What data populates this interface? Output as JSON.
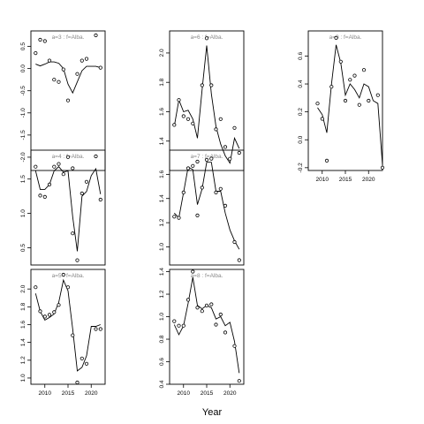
{
  "chart_data": {
    "type": "scatter",
    "xlabel": "Year",
    "panels": [
      {
        "label": "a=3  :  f=Alba.",
        "xlim": [
          2007,
          2023
        ],
        "ylim": [
          -2.3,
          0.85
        ],
        "yticks": [
          -2.0,
          -1.5,
          -1.0,
          -0.5,
          0.0,
          0.5
        ],
        "points": [
          [
            2008,
            0.35
          ],
          [
            2009,
            0.65
          ],
          [
            2010,
            0.62
          ],
          [
            2011,
            0.18
          ],
          [
            2012,
            -0.25
          ],
          [
            2013,
            -0.3
          ],
          [
            2014,
            -0.02
          ],
          [
            2015,
            -0.72
          ],
          [
            2016,
            -2.25
          ],
          [
            2017,
            -0.12
          ],
          [
            2018,
            0.18
          ],
          [
            2019,
            0.22
          ],
          [
            2021,
            0.75
          ],
          [
            2022,
            0.02
          ]
        ],
        "fit": [
          [
            2008,
            0.1
          ],
          [
            2009,
            0.06
          ],
          [
            2010,
            0.1
          ],
          [
            2011,
            0.15
          ],
          [
            2012,
            0.15
          ],
          [
            2013,
            0.12
          ],
          [
            2014,
            0.0
          ],
          [
            2015,
            -0.35
          ],
          [
            2016,
            -0.55
          ],
          [
            2017,
            -0.3
          ],
          [
            2018,
            -0.05
          ],
          [
            2019,
            0.05
          ],
          [
            2020,
            0.05
          ],
          [
            2021,
            0.05
          ],
          [
            2022,
            0.02
          ]
        ]
      },
      {
        "label": "a=6  :  f=Alba.",
        "xlim": [
          2007,
          2023
        ],
        "ylim": [
          1.2,
          2.15
        ],
        "yticks": [
          1.4,
          1.6,
          1.8,
          2.0
        ],
        "points": [
          [
            2008,
            1.51
          ],
          [
            2009,
            1.68
          ],
          [
            2010,
            1.57
          ],
          [
            2011,
            1.55
          ],
          [
            2012,
            1.52
          ],
          [
            2013,
            1.26
          ],
          [
            2014,
            1.78
          ],
          [
            2015,
            2.1
          ],
          [
            2016,
            1.78
          ],
          [
            2017,
            1.48
          ],
          [
            2018,
            1.55
          ],
          [
            2019,
            1.36
          ],
          [
            2020,
            1.28
          ],
          [
            2021,
            1.49
          ],
          [
            2022,
            1.32
          ]
        ],
        "fit": [
          [
            2008,
            1.5
          ],
          [
            2009,
            1.68
          ],
          [
            2010,
            1.6
          ],
          [
            2011,
            1.61
          ],
          [
            2012,
            1.55
          ],
          [
            2013,
            1.42
          ],
          [
            2014,
            1.75
          ],
          [
            2015,
            2.05
          ],
          [
            2016,
            1.72
          ],
          [
            2017,
            1.5
          ],
          [
            2018,
            1.38
          ],
          [
            2019,
            1.3
          ],
          [
            2020,
            1.25
          ],
          [
            2021,
            1.42
          ],
          [
            2022,
            1.35
          ]
        ]
      },
      {
        "label": "a=9  :  f=Alba.",
        "xlim": [
          2007,
          2023
        ],
        "ylim": [
          -0.22,
          0.78
        ],
        "yticks": [
          -0.2,
          0.0,
          0.2,
          0.4,
          0.6
        ],
        "points": [
          [
            2009,
            0.26
          ],
          [
            2010,
            0.15
          ],
          [
            2011,
            -0.15
          ],
          [
            2012,
            0.38
          ],
          [
            2013,
            0.73
          ],
          [
            2014,
            0.56
          ],
          [
            2015,
            0.28
          ],
          [
            2016,
            0.43
          ],
          [
            2017,
            0.46
          ],
          [
            2018,
            0.25
          ],
          [
            2019,
            0.5
          ],
          [
            2020,
            0.28
          ],
          [
            2022,
            0.32
          ],
          [
            2023,
            -0.2
          ]
        ],
        "fit": [
          [
            2009,
            0.23
          ],
          [
            2010,
            0.18
          ],
          [
            2011,
            0.05
          ],
          [
            2012,
            0.4
          ],
          [
            2013,
            0.68
          ],
          [
            2014,
            0.55
          ],
          [
            2015,
            0.32
          ],
          [
            2016,
            0.4
          ],
          [
            2017,
            0.36
          ],
          [
            2018,
            0.3
          ],
          [
            2019,
            0.4
          ],
          [
            2020,
            0.38
          ],
          [
            2021,
            0.28
          ],
          [
            2022,
            0.26
          ],
          [
            2023,
            -0.18
          ]
        ]
      },
      {
        "label": "a=4  :  f=Alba.",
        "xlim": [
          2007,
          2023
        ],
        "ylim": [
          0.25,
          1.92
        ],
        "yticks": [
          0.5,
          1.0,
          1.5
        ],
        "points": [
          [
            2008,
            1.68
          ],
          [
            2009,
            1.26
          ],
          [
            2010,
            1.24
          ],
          [
            2011,
            1.42
          ],
          [
            2012,
            1.68
          ],
          [
            2013,
            1.72
          ],
          [
            2014,
            1.57
          ],
          [
            2015,
            1.82
          ],
          [
            2016,
            0.71
          ],
          [
            2017,
            0.32
          ],
          [
            2018,
            1.29
          ],
          [
            2019,
            1.46
          ],
          [
            2021,
            1.83
          ],
          [
            2022,
            1.2
          ]
        ],
        "fit": [
          [
            2008,
            1.62
          ],
          [
            2009,
            1.35
          ],
          [
            2010,
            1.35
          ],
          [
            2011,
            1.42
          ],
          [
            2012,
            1.62
          ],
          [
            2013,
            1.68
          ],
          [
            2014,
            1.6
          ],
          [
            2015,
            1.62
          ],
          [
            2016,
            0.95
          ],
          [
            2017,
            0.45
          ],
          [
            2018,
            1.25
          ],
          [
            2019,
            1.32
          ],
          [
            2020,
            1.55
          ],
          [
            2021,
            1.65
          ],
          [
            2022,
            1.28
          ]
        ]
      },
      {
        "label": "a=7  :  f=Alba.",
        "xlim": [
          2007,
          2023
        ],
        "ylim": [
          0.85,
          1.8
        ],
        "yticks": [
          1.0,
          1.2,
          1.4,
          1.6
        ],
        "points": [
          [
            2008,
            1.25
          ],
          [
            2009,
            1.24
          ],
          [
            2010,
            1.45
          ],
          [
            2011,
            1.65
          ],
          [
            2012,
            1.67
          ],
          [
            2013,
            1.26
          ],
          [
            2014,
            1.49
          ],
          [
            2015,
            1.72
          ],
          [
            2016,
            1.73
          ],
          [
            2017,
            1.45
          ],
          [
            2018,
            1.48
          ],
          [
            2019,
            1.34
          ],
          [
            2021,
            1.04
          ],
          [
            2022,
            0.89
          ]
        ],
        "fit": [
          [
            2008,
            1.28
          ],
          [
            2009,
            1.24
          ],
          [
            2010,
            1.45
          ],
          [
            2011,
            1.66
          ],
          [
            2012,
            1.64
          ],
          [
            2013,
            1.35
          ],
          [
            2014,
            1.48
          ],
          [
            2015,
            1.7
          ],
          [
            2016,
            1.7
          ],
          [
            2017,
            1.46
          ],
          [
            2018,
            1.46
          ],
          [
            2019,
            1.28
          ],
          [
            2020,
            1.14
          ],
          [
            2021,
            1.05
          ],
          [
            2022,
            0.98
          ]
        ]
      },
      {
        "label": "a=5  :  f=Alba.",
        "xlim": [
          2007,
          2023
        ],
        "ylim": [
          0.93,
          2.22
        ],
        "yticks": [
          1.0,
          1.2,
          1.4,
          1.6,
          1.8,
          2.0
        ],
        "points": [
          [
            2008,
            2.02
          ],
          [
            2009,
            1.75
          ],
          [
            2010,
            1.69
          ],
          [
            2011,
            1.71
          ],
          [
            2012,
            1.74
          ],
          [
            2013,
            1.82
          ],
          [
            2014,
            2.16
          ],
          [
            2015,
            2.02
          ],
          [
            2016,
            1.48
          ],
          [
            2017,
            0.95
          ],
          [
            2018,
            1.22
          ],
          [
            2019,
            1.16
          ],
          [
            2021,
            1.55
          ],
          [
            2022,
            1.55
          ]
        ],
        "fit": [
          [
            2008,
            1.95
          ],
          [
            2009,
            1.75
          ],
          [
            2010,
            1.65
          ],
          [
            2011,
            1.68
          ],
          [
            2012,
            1.72
          ],
          [
            2013,
            1.85
          ],
          [
            2014,
            2.1
          ],
          [
            2015,
            1.98
          ],
          [
            2016,
            1.55
          ],
          [
            2017,
            1.08
          ],
          [
            2018,
            1.12
          ],
          [
            2019,
            1.25
          ],
          [
            2020,
            1.58
          ],
          [
            2021,
            1.58
          ],
          [
            2022,
            1.6
          ]
        ]
      },
      {
        "label": "a=8  :  f=Alba.",
        "xlim": [
          2007,
          2023
        ],
        "ylim": [
          0.4,
          1.42
        ],
        "yticks": [
          0.4,
          0.6,
          0.8,
          1.0,
          1.2,
          1.4
        ],
        "xticks": [
          2010,
          2015,
          2020
        ],
        "points": [
          [
            2008,
            0.96
          ],
          [
            2009,
            0.92
          ],
          [
            2010,
            0.92
          ],
          [
            2011,
            1.15
          ],
          [
            2012,
            1.4
          ],
          [
            2013,
            1.08
          ],
          [
            2014,
            1.05
          ],
          [
            2015,
            1.1
          ],
          [
            2016,
            1.11
          ],
          [
            2017,
            0.93
          ],
          [
            2018,
            1.02
          ],
          [
            2019,
            0.86
          ],
          [
            2021,
            0.74
          ],
          [
            2022,
            0.43
          ]
        ],
        "fit": [
          [
            2008,
            0.93
          ],
          [
            2009,
            0.84
          ],
          [
            2010,
            0.92
          ],
          [
            2011,
            1.12
          ],
          [
            2012,
            1.35
          ],
          [
            2013,
            1.1
          ],
          [
            2014,
            1.07
          ],
          [
            2015,
            1.1
          ],
          [
            2016,
            1.08
          ],
          [
            2017,
            0.98
          ],
          [
            2018,
            1.0
          ],
          [
            2019,
            0.92
          ],
          [
            2020,
            0.95
          ],
          [
            2021,
            0.78
          ],
          [
            2022,
            0.5
          ]
        ]
      }
    ],
    "bottom_xticks": [
      2010,
      2015,
      2020
    ]
  }
}
